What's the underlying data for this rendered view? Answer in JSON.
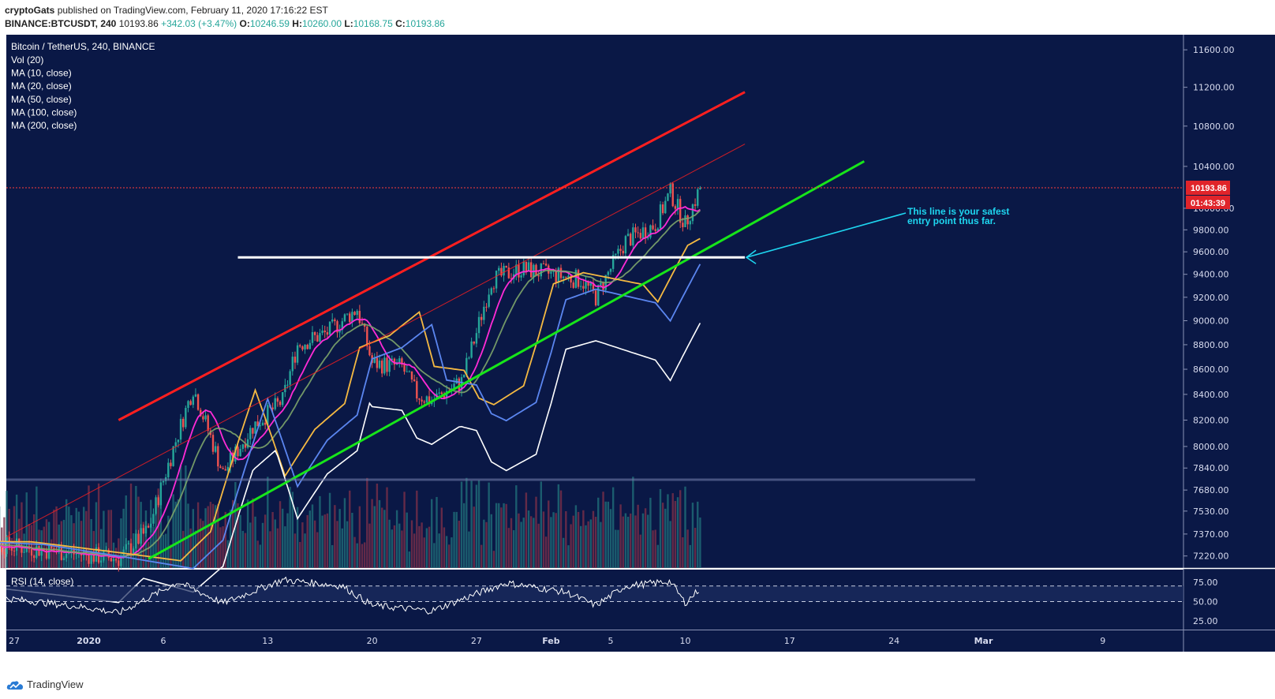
{
  "header": {
    "author": "cryptoGats",
    "published": "published on TradingView.com, February 11, 2020 17:16:22 EST",
    "symbol": "BINANCE:BTCUSDT, 240",
    "last": "10193.86",
    "change": "+342.03 (+3.47%)",
    "open_label": "O:",
    "open": "10246.59",
    "high_label": "H:",
    "high": "10260.00",
    "low_label": "L:",
    "low": "10168.75",
    "close_label": "C:",
    "close": "10193.86"
  },
  "legend": {
    "title": "Bitcoin / TetherUS, 240, BINANCE",
    "items": [
      "Vol (20)",
      "MA (10, close)",
      "MA (20, close)",
      "MA (50, close)",
      "MA (100, close)",
      "MA (200, close)"
    ]
  },
  "annotation": "This line is your safest entry point thus far.",
  "price_tag": "10193.86",
  "countdown": "01:43:39",
  "rsi_label": "RSI (14, close)",
  "footer": {
    "brand": "TradingView"
  },
  "colors": {
    "background": "#0a1846",
    "channel_upper": "#ff1f1f",
    "trend_support": "#17e51a",
    "level_line": "#ffffff",
    "annotation": "#1ed6f0",
    "ma10": "#ff2bd6",
    "ma20": "#7da56a",
    "ma50": "#f5b942",
    "ma100": "#5b86f0",
    "ma200": "#ffffff",
    "up": "#26a69a",
    "down": "#ef5350"
  },
  "chart_data": [
    {
      "type": "candlestick",
      "title": "Bitcoin / TetherUS, 240, BINANCE",
      "x_tick_labels": [
        "27",
        "2020",
        "6",
        "13",
        "20",
        "27",
        "Feb",
        "5",
        "10",
        "17",
        "24",
        "Mar",
        "9"
      ],
      "y_tick_labels": [
        "11600.00",
        "11200.00",
        "10800.00",
        "10400.00",
        "10000.00",
        "9800.00",
        "9600.00",
        "9400.00",
        "9200.00",
        "9000.00",
        "8800.00",
        "8600.00",
        "8400.00",
        "8200.00",
        "8000.00",
        "7840.00",
        "7680.00",
        "7530.00",
        "7370.00",
        "7220.00"
      ],
      "y_scale": "log",
      "ylim": [
        7160,
        11800
      ],
      "price_path_approx": [
        {
          "date": "2019-12-24",
          "price": 7320
        },
        {
          "date": "2019-12-30",
          "price": 7250
        },
        {
          "date": "2020-01-03",
          "price": 7200
        },
        {
          "date": "2020-01-05",
          "price": 7400
        },
        {
          "date": "2020-01-07",
          "price": 8100
        },
        {
          "date": "2020-01-08",
          "price": 8450
        },
        {
          "date": "2020-01-10",
          "price": 7800
        },
        {
          "date": "2020-01-12",
          "price": 8150
        },
        {
          "date": "2020-01-14",
          "price": 8350
        },
        {
          "date": "2020-01-15",
          "price": 8800
        },
        {
          "date": "2020-01-17",
          "price": 8900
        },
        {
          "date": "2020-01-19",
          "price": 9100
        },
        {
          "date": "2020-01-20",
          "price": 8650
        },
        {
          "date": "2020-01-22",
          "price": 8620
        },
        {
          "date": "2020-01-23",
          "price": 8400
        },
        {
          "date": "2020-01-24",
          "price": 8350
        },
        {
          "date": "2020-01-26",
          "price": 8500
        },
        {
          "date": "2020-01-27",
          "price": 8900
        },
        {
          "date": "2020-01-28",
          "price": 9350
        },
        {
          "date": "2020-01-30",
          "price": 9450
        },
        {
          "date": "2020-02-01",
          "price": 9400
        },
        {
          "date": "2020-02-03",
          "price": 9350
        },
        {
          "date": "2020-02-04",
          "price": 9200
        },
        {
          "date": "2020-02-05",
          "price": 9450
        },
        {
          "date": "2020-02-06",
          "price": 9700
        },
        {
          "date": "2020-02-08",
          "price": 9850
        },
        {
          "date": "2020-02-09",
          "price": 10150
        },
        {
          "date": "2020-02-10",
          "price": 9850
        },
        {
          "date": "2020-02-11",
          "price": 10194
        }
      ],
      "moving_averages": [
        {
          "name": "MA (10, close)",
          "end_value": 9920
        },
        {
          "name": "MA (20, close)",
          "end_value": 9900
        },
        {
          "name": "MA (50, close)",
          "end_value": 9720
        },
        {
          "name": "MA (100, close)",
          "end_value": 9490
        },
        {
          "name": "MA (200, close)",
          "end_value": 8980
        }
      ],
      "drawings": [
        {
          "kind": "upper channel line",
          "from": {
            "date": "2020-01-03",
            "price": 8200
          },
          "to": {
            "date": "2020-02-14",
            "price": 11150
          }
        },
        {
          "kind": "support trend line",
          "from": {
            "date": "2020-01-05",
            "price": 7200
          },
          "to": {
            "date": "2020-02-22",
            "price": 10450
          }
        },
        {
          "kind": "horizontal level",
          "price": 9550,
          "from_date": "2020-01-11",
          "to_date": "2020-02-14"
        }
      ],
      "last_price": 10193.86
    },
    {
      "type": "line",
      "title": "RSI (14, close)",
      "y_tick_labels": [
        "75.00",
        "50.00",
        "25.00"
      ],
      "ylim": [
        20,
        85
      ],
      "guide_levels": [
        70,
        50
      ],
      "rsi_path_approx": [
        {
          "date": "2019-12-26",
          "value": 55
        },
        {
          "date": "2020-01-01",
          "value": 42
        },
        {
          "date": "2020-01-03",
          "value": 35
        },
        {
          "date": "2020-01-07",
          "value": 75
        },
        {
          "date": "2020-01-10",
          "value": 48
        },
        {
          "date": "2020-01-14",
          "value": 78
        },
        {
          "date": "2020-01-18",
          "value": 70
        },
        {
          "date": "2020-01-20",
          "value": 45
        },
        {
          "date": "2020-01-24",
          "value": 38
        },
        {
          "date": "2020-01-27",
          "value": 60
        },
        {
          "date": "2020-01-29",
          "value": 74
        },
        {
          "date": "2020-02-02",
          "value": 62
        },
        {
          "date": "2020-02-04",
          "value": 45
        },
        {
          "date": "2020-02-06",
          "value": 70
        },
        {
          "date": "2020-02-09",
          "value": 76
        },
        {
          "date": "2020-02-10",
          "value": 48
        },
        {
          "date": "2020-02-11",
          "value": 67
        }
      ]
    }
  ]
}
